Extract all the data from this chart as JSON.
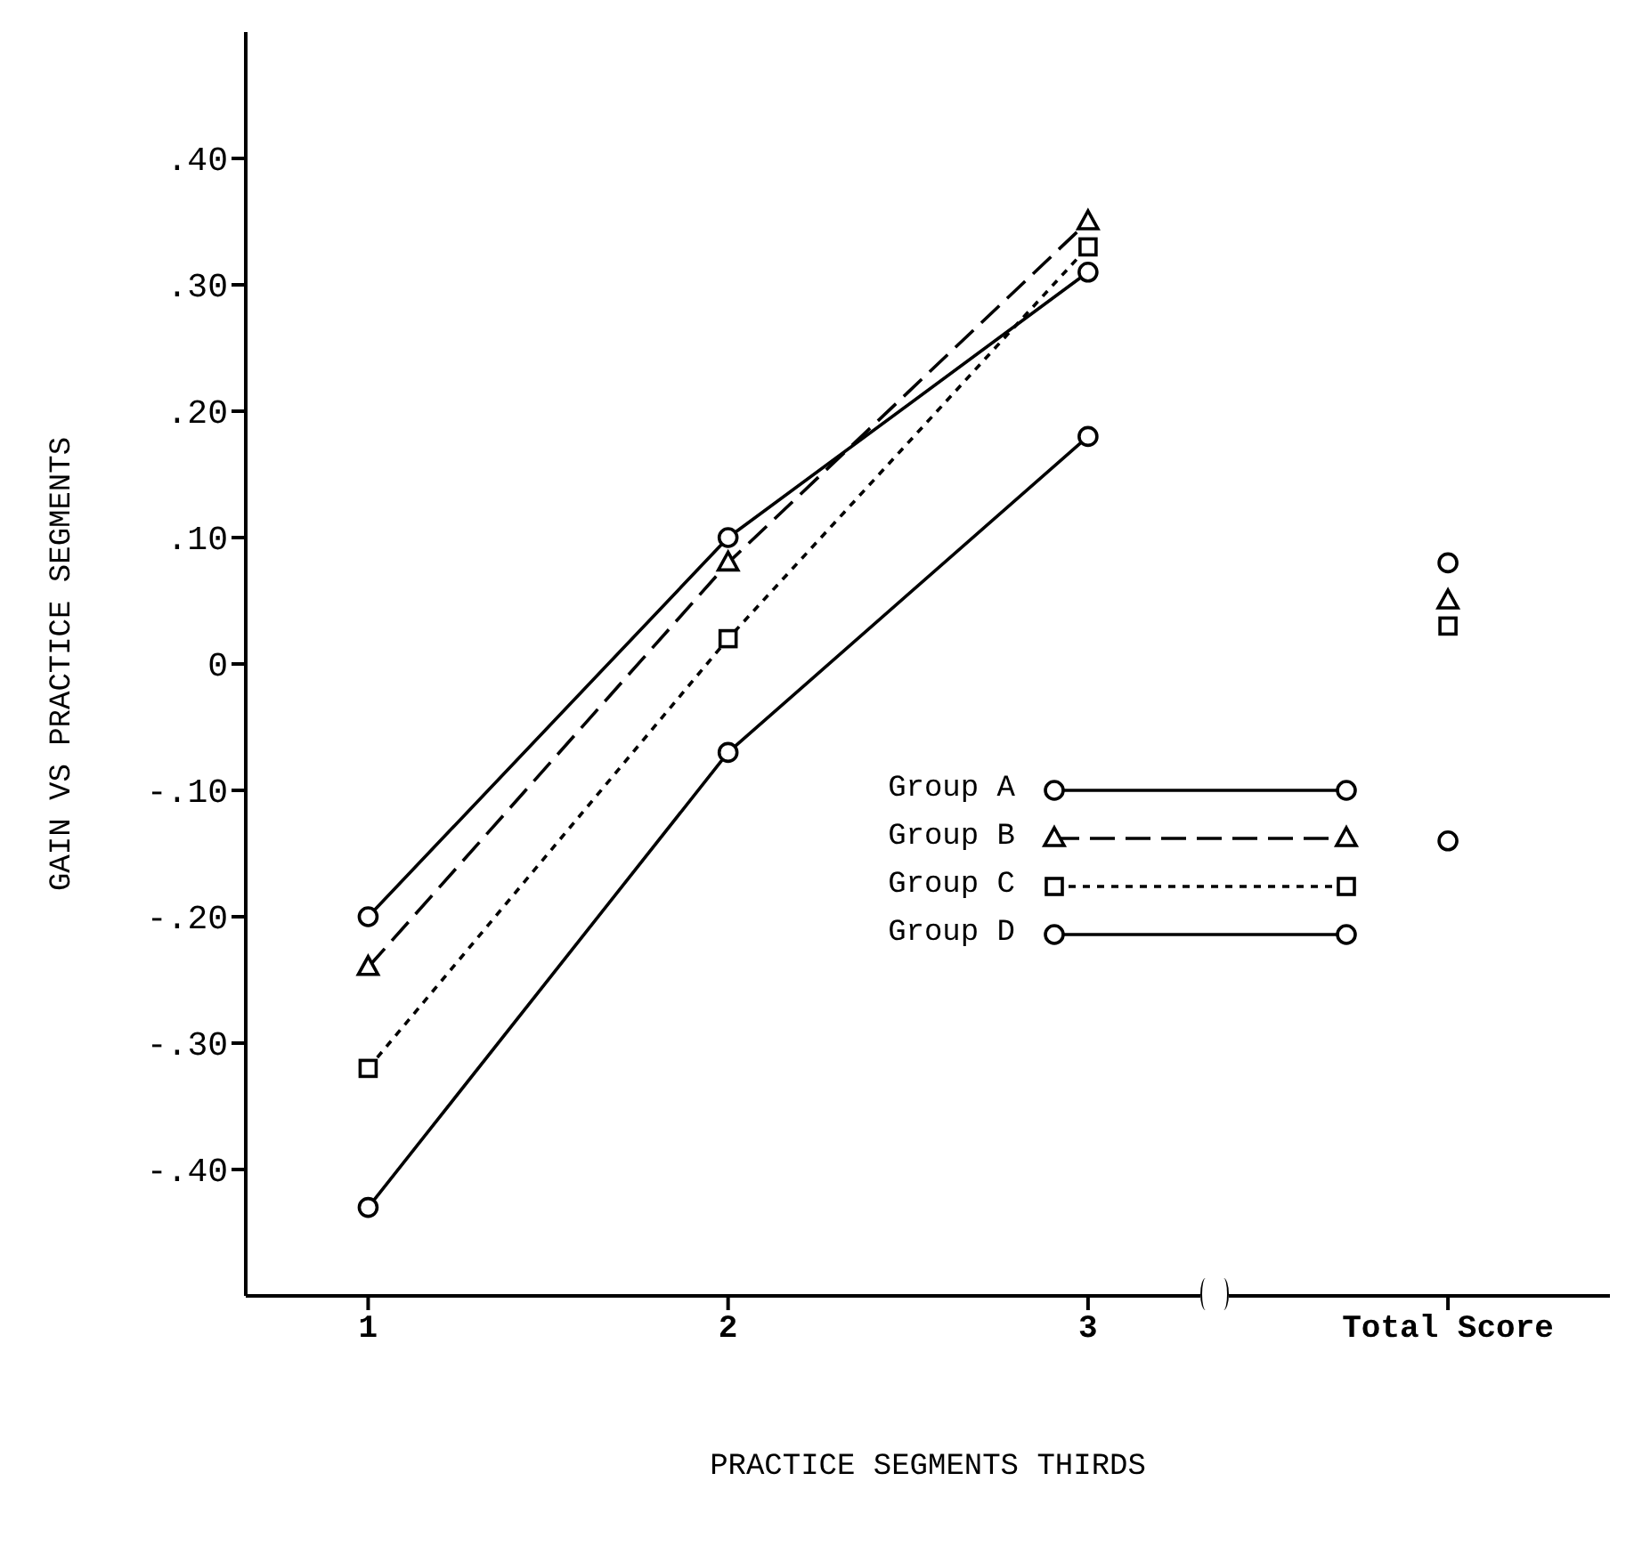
{
  "chart_data": {
    "type": "line",
    "xlabel": "PRACTICE SEGMENTS THIRDS",
    "ylabel": "GAIN VS PRACTICE SEGMENTS",
    "categories": [
      "1",
      "2",
      "3",
      "Total Score"
    ],
    "ylim": [
      -0.5,
      0.5
    ],
    "yticks": [
      {
        "value": -0.4,
        "label": "-.40"
      },
      {
        "value": -0.3,
        "label": "-.30"
      },
      {
        "value": -0.2,
        "label": "-.20"
      },
      {
        "value": -0.1,
        "label": "-.10"
      },
      0,
      {
        "value": 0.1,
        "label": ".10"
      },
      {
        "value": 0.2,
        "label": ".20"
      },
      {
        "value": 0.3,
        "label": ".30"
      },
      {
        "value": 0.4,
        "label": ".40"
      }
    ],
    "grid": false,
    "legend": "bottom right",
    "series": [
      {
        "name": "Group A",
        "color": "#000000",
        "marker": "circle",
        "line_style": "solid",
        "values": [
          -0.43,
          -0.07,
          0.18,
          null
        ]
      },
      {
        "name": "Group B",
        "color": "#000000",
        "marker": "triangle",
        "line_style": "dashed",
        "values": [
          -0.24,
          0.08,
          0.35,
          null
        ]
      },
      {
        "name": "Group C",
        "color": "#000000",
        "marker": "square",
        "line_style": "dotted",
        "values": [
          -0.32,
          0.02,
          0.33,
          null
        ]
      },
      {
        "name": "Group D",
        "color": "#000000",
        "marker": "circle",
        "line_style": "solid",
        "values": [
          -0.2,
          0.1,
          0.31,
          null
        ]
      },
      {
        "type": "scatter",
        "color": "#000000",
        "marker": "circle",
        "x": [
          "Total Score"
        ],
        "values": [
          -0.14
        ]
      },
      {
        "type": "scatter",
        "color": "#000000",
        "marker": "triangle",
        "x": [
          "Total Score"
        ],
        "values": [
          0.05
        ]
      },
      {
        "type": "scatter",
        "color": "#000000",
        "marker": "square",
        "x": [
          "Total Score"
        ],
        "values": [
          0.03
        ]
      },
      {
        "type": "scatter",
        "color": "#000000",
        "marker": "circle",
        "x": [
          "Total Score"
        ],
        "values": [
          0.08
        ]
      }
    ]
  }
}
